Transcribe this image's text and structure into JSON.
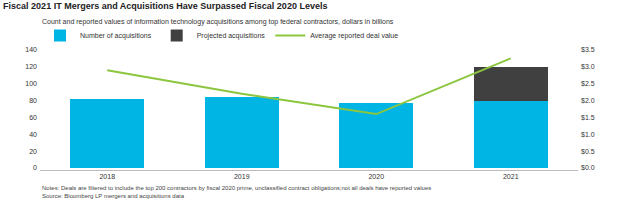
{
  "chart_data": {
    "type": "bar",
    "title": "Fiscal 2021 IT Mergers and Acquisitions Have Surpassed Fiscal 2020 Levels",
    "subtitle": "Count and reported values of information technology acquisitions among top federal contractors, dollars in billions",
    "notes": [
      "Notes: Deals are filtered to include the top 200 contractors by fiscal 2020 prime, unclassified contract obligations;not all deals have reported values",
      "Source: Bloomberg LP mergers and acquisitions data"
    ],
    "categories": [
      "2018",
      "2019",
      "2020",
      "2021"
    ],
    "stacked": true,
    "grid": false,
    "legend": "top",
    "series": [
      {
        "name": "Number of acquisitions",
        "type": "bar",
        "color": "#00b4e4",
        "values": [
          82,
          84,
          77,
          80
        ]
      },
      {
        "name": "Projected acquisitions",
        "type": "bar",
        "color": "#404040",
        "values": [
          null,
          null,
          null,
          40
        ]
      },
      {
        "name": "Average reported deal value",
        "type": "line",
        "color": "#8cc63f",
        "axis": "y2",
        "values": [
          2.9,
          2.2,
          1.6,
          3.25
        ]
      }
    ],
    "ylim": [
      0,
      140
    ],
    "yticks": [
      0,
      20,
      40,
      60,
      80,
      100,
      120,
      140
    ],
    "y2lim": [
      0,
      3.5
    ],
    "y2ticks": [
      {
        "value": 0,
        "label": "$0.0"
      },
      {
        "value": 0.5,
        "label": "$0.5"
      },
      {
        "value": 1,
        "label": "$1.0"
      },
      {
        "value": 1.5,
        "label": "$1.5"
      },
      {
        "value": 2,
        "label": "$2.0"
      },
      {
        "value": 2.5,
        "label": "$2.5"
      },
      {
        "value": 3,
        "label": "$3.0"
      },
      {
        "value": 3.5,
        "label": "$3.5"
      }
    ]
  }
}
